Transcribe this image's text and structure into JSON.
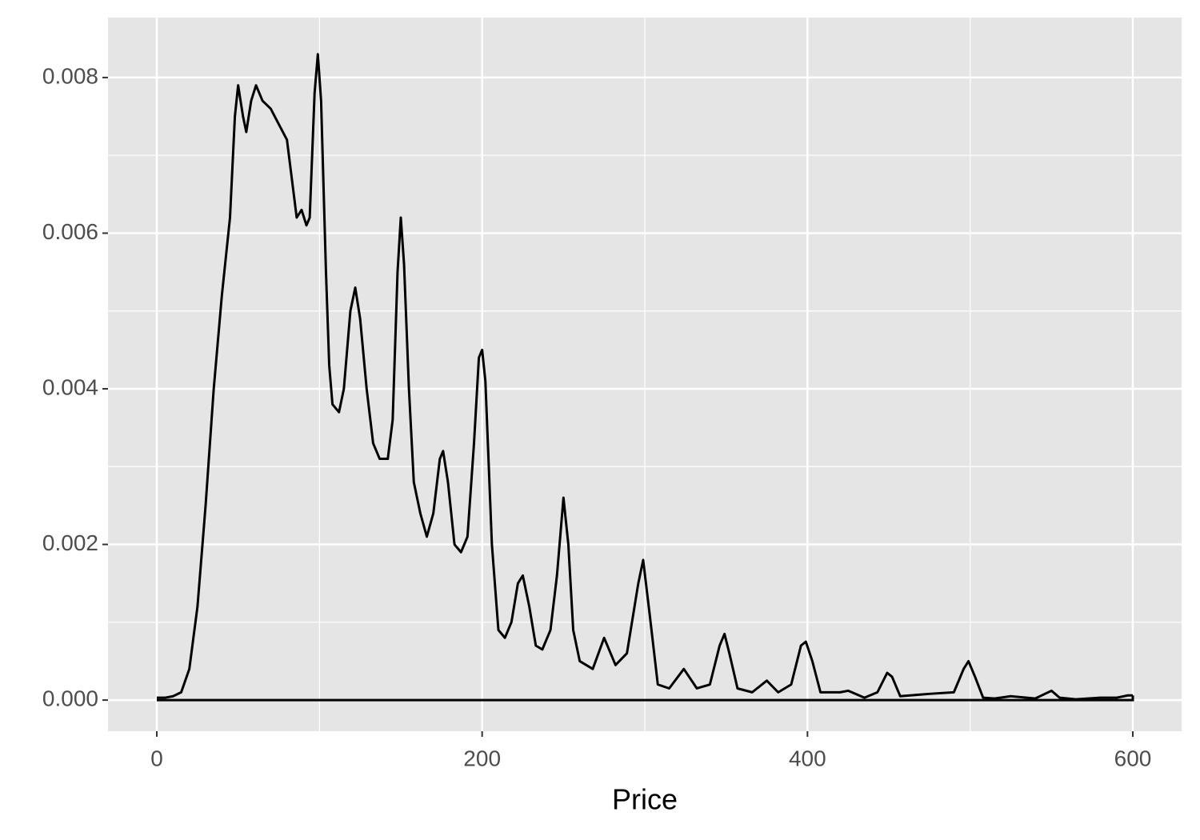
{
  "chart_data": {
    "type": "density",
    "x_label": "Price",
    "x": [
      0,
      5,
      10,
      15,
      20,
      25,
      30,
      35,
      40,
      45,
      48,
      50,
      53,
      55,
      58,
      61,
      65,
      70,
      75,
      80,
      83,
      86,
      89,
      92,
      94,
      97,
      99,
      101,
      104,
      106,
      108,
      112,
      115,
      119,
      122,
      125,
      129,
      133,
      137,
      142,
      145,
      148,
      150,
      152,
      155,
      158,
      162,
      166,
      170,
      174,
      176,
      179,
      183,
      187,
      191,
      195,
      198,
      200,
      202,
      206,
      210,
      214,
      218,
      222,
      225,
      229,
      233,
      237,
      242,
      246,
      250,
      253,
      256,
      260,
      268,
      275,
      282,
      289,
      296,
      299,
      303,
      308,
      315,
      324,
      332,
      340,
      346,
      349,
      352,
      357,
      366,
      375,
      382,
      390,
      396,
      399,
      403,
      408,
      420,
      425,
      435,
      443,
      449,
      452,
      457,
      475,
      490,
      496,
      499,
      503,
      508,
      515,
      525,
      540,
      550,
      555,
      565,
      580,
      590,
      597,
      600
    ],
    "values": [
      3e-05,
      3e-05,
      5e-05,
      0.0001,
      0.0004,
      0.0012,
      0.0025,
      0.004,
      0.0052,
      0.0062,
      0.0075,
      0.0079,
      0.0075,
      0.0073,
      0.0077,
      0.0079,
      0.0077,
      0.0076,
      0.0074,
      0.0072,
      0.0067,
      0.0062,
      0.0063,
      0.0061,
      0.0062,
      0.0078,
      0.0083,
      0.0077,
      0.0055,
      0.0043,
      0.0038,
      0.0037,
      0.004,
      0.005,
      0.0053,
      0.0049,
      0.004,
      0.0033,
      0.0031,
      0.0031,
      0.0036,
      0.0055,
      0.0062,
      0.0056,
      0.004,
      0.0028,
      0.0024,
      0.0021,
      0.0024,
      0.0031,
      0.0032,
      0.0028,
      0.002,
      0.0019,
      0.0021,
      0.0033,
      0.0044,
      0.0045,
      0.0041,
      0.002,
      0.0009,
      0.0008,
      0.001,
      0.0015,
      0.0016,
      0.0012,
      0.0007,
      0.00065,
      0.0009,
      0.0016,
      0.0026,
      0.002,
      0.0009,
      0.0005,
      0.0004,
      0.0008,
      0.00045,
      0.0006,
      0.0015,
      0.0018,
      0.0011,
      0.0002,
      0.00015,
      0.0004,
      0.00015,
      0.0002,
      0.0007,
      0.00085,
      0.0006,
      0.00015,
      0.0001,
      0.00025,
      0.0001,
      0.0002,
      0.0007,
      0.00075,
      0.0005,
      0.0001,
      0.0001,
      0.00012,
      3e-05,
      0.0001,
      0.00035,
      0.0003,
      5e-05,
      8e-05,
      0.0001,
      0.0004,
      0.0005,
      0.0003,
      3e-05,
      2e-05,
      5e-05,
      2e-05,
      0.00012,
      3e-05,
      1e-05,
      3e-05,
      3e-05,
      6e-05,
      6e-05
    ],
    "color": "#000000",
    "xlim": [
      -30,
      630
    ],
    "ylim": [
      -0.0004,
      0.00877
    ],
    "xticks": [
      0,
      200,
      400,
      600
    ],
    "x_minor_ticks": [
      100,
      300,
      500
    ],
    "yticks": [
      {
        "value": 0,
        "label": "0.000"
      },
      {
        "value": 0.002,
        "label": "0.002"
      },
      {
        "value": 0.004,
        "label": "0.004"
      },
      {
        "value": 0.006,
        "label": "0.006"
      },
      {
        "value": 0.008,
        "label": "0.008"
      }
    ],
    "y_minor_ticks": [
      0.001,
      0.003,
      0.005,
      0.007
    ],
    "grid": true
  }
}
